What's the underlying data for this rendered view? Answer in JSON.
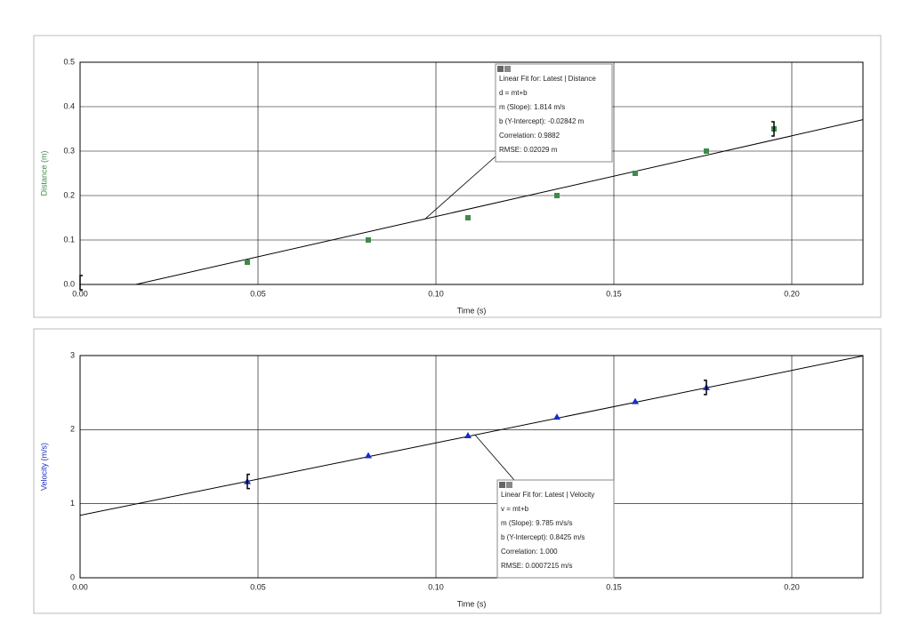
{
  "chart_data": [
    {
      "type": "scatter",
      "xlabel": "Time (s)",
      "ylabel": "Distance (m)",
      "color": "#3d8b4a",
      "marker": "square",
      "x": [
        0.047,
        0.081,
        0.109,
        0.134,
        0.156,
        0.176,
        0.195
      ],
      "values": [
        0.05,
        0.1,
        0.15,
        0.2,
        0.25,
        0.3,
        0.35
      ],
      "xlim": [
        0,
        0.22
      ],
      "ylim": [
        0,
        0.5
      ],
      "xticks": [
        {
          "value": 0,
          "label": "0.00"
        },
        0.05,
        {
          "value": 0.1,
          "label": "0.10"
        },
        0.15,
        {
          "value": 0.2,
          "label": "0.20"
        }
      ],
      "yticks": [
        {
          "value": 0,
          "label": "0.0"
        },
        0.1,
        0.2,
        0.3,
        0.4,
        0.5
      ],
      "grid": true,
      "fit": {
        "slope": 1.814,
        "intercept": -0.02842
      },
      "selection": [
        0,
        0.195
      ],
      "annotation": [
        "Linear Fit for: Latest | Distance",
        "d = mt+b",
        "m (Slope): 1.814 m/s",
        "b (Y-Intercept): -0.02842 m",
        "Correlation: 0.9882",
        "RMSE: 0.02029 m"
      ]
    },
    {
      "type": "scatter",
      "xlabel": "Time (s)",
      "ylabel": "Velocity (m/s)",
      "color": "#1a2fc0",
      "marker": "triangle",
      "x": [
        0.047,
        0.081,
        0.109,
        0.134,
        0.156,
        0.176
      ],
      "values": [
        1.3,
        1.65,
        1.92,
        2.17,
        2.38,
        2.57
      ],
      "xlim": [
        0,
        0.22
      ],
      "ylim": [
        0,
        3
      ],
      "xticks": [
        {
          "value": 0,
          "label": "0.00"
        },
        0.05,
        {
          "value": 0.1,
          "label": "0.10"
        },
        0.15,
        {
          "value": 0.2,
          "label": "0.20"
        }
      ],
      "yticks": [
        0,
        1,
        2,
        3
      ],
      "grid": true,
      "fit": {
        "slope": 9.785,
        "intercept": 0.8425
      },
      "selection": [
        0.047,
        0.176
      ],
      "annotation": [
        "Linear Fit for: Latest | Velocity",
        "v = mt+b",
        "m (Slope): 9.785 m/s/s",
        "b (Y-Intercept): 0.8425 m/s",
        "Correlation: 1.000",
        "RMSE: 0.0007215 m/s"
      ]
    }
  ]
}
